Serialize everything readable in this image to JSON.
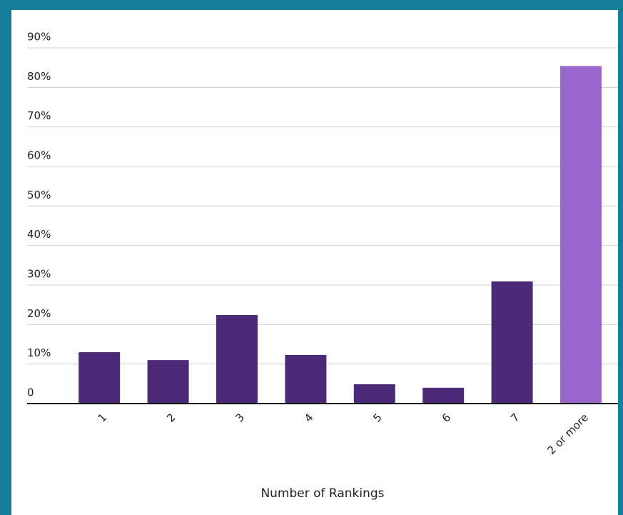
{
  "chart_data": {
    "type": "bar",
    "x_label": "Number of Rankings",
    "categories": [
      "1",
      "2",
      "3",
      "4",
      "5",
      "6",
      "7",
      "2 or more"
    ],
    "values": [
      13,
      11,
      22.4,
      12.3,
      4.9,
      4,
      30.9,
      85.4
    ],
    "colors": [
      "#4b2a78",
      "#4b2a78",
      "#4b2a78",
      "#4b2a78",
      "#4b2a78",
      "#4b2a78",
      "#4b2a78",
      "#9966cc"
    ],
    "ylim": [
      0,
      90
    ],
    "yticks": [
      {
        "value": 0,
        "label": "0"
      },
      {
        "value": 10,
        "label": "10%"
      },
      {
        "value": 20,
        "label": "20%"
      },
      {
        "value": 30,
        "label": "30%"
      },
      {
        "value": 40,
        "label": "40%"
      },
      {
        "value": 50,
        "label": "50%"
      },
      {
        "value": 60,
        "label": "60%"
      },
      {
        "value": 70,
        "label": "70%"
      },
      {
        "value": 80,
        "label": "80%"
      },
      {
        "value": 90,
        "label": "90%"
      }
    ],
    "grid": true
  }
}
